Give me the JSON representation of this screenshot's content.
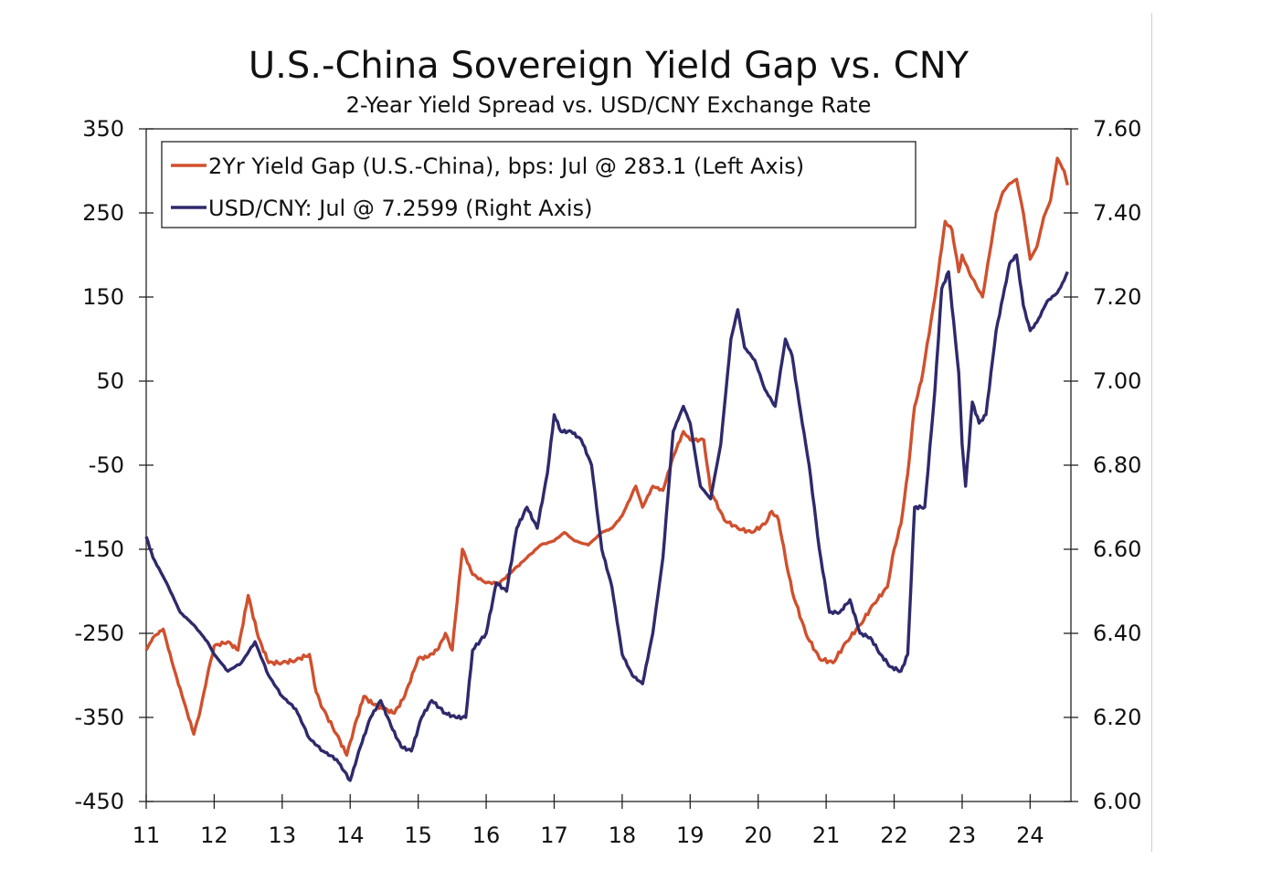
{
  "chart_data": {
    "type": "line",
    "title": "U.S.-China Sovereign Yield Gap vs. CNY",
    "subtitle": "2-Year Yield Spread vs. USD/CNY Exchange Rate",
    "xlabel": "",
    "ylabel_left": "",
    "ylabel_right": "",
    "xlim": [
      2011.0,
      2024.6
    ],
    "x_ticks": [
      2011,
      2012,
      2013,
      2014,
      2015,
      2016,
      2017,
      2018,
      2019,
      2020,
      2021,
      2022,
      2023,
      2024
    ],
    "x_tick_labels": [
      "11",
      "12",
      "13",
      "14",
      "15",
      "16",
      "17",
      "18",
      "19",
      "20",
      "21",
      "22",
      "23",
      "24"
    ],
    "ylim_left": [
      -450,
      350
    ],
    "y_ticks_left": [
      350,
      250,
      150,
      50,
      -50,
      -150,
      -250,
      -350,
      -450
    ],
    "y_tick_labels_left": [
      "350",
      "250",
      "150",
      "50",
      "-50",
      "-150",
      "-250",
      "-350",
      "-450"
    ],
    "ylim_right": [
      6.0,
      7.6
    ],
    "y_ticks_right": [
      7.6,
      7.4,
      7.2,
      7.0,
      6.8,
      6.6,
      6.4,
      6.2,
      6.0
    ],
    "y_tick_labels_right": [
      "7.60",
      "7.40",
      "7.20",
      "7.00",
      "6.80",
      "6.60",
      "6.40",
      "6.20",
      "6.00"
    ],
    "grid": false,
    "legend_position": "top-left",
    "series": [
      {
        "name": "2Yr Yield Gap (U.S.-China), bps: Jul @ 283.1 (Left Axis)",
        "axis": "left",
        "color": "#d0502e",
        "x": [
          2011.0,
          2011.1,
          2011.25,
          2011.4,
          2011.55,
          2011.7,
          2011.8,
          2011.9,
          2012.0,
          2012.2,
          2012.35,
          2012.5,
          2012.65,
          2012.8,
          2013.0,
          2013.2,
          2013.4,
          2013.5,
          2013.6,
          2013.8,
          2013.95,
          2014.05,
          2014.2,
          2014.35,
          2014.5,
          2014.65,
          2014.8,
          2015.0,
          2015.15,
          2015.3,
          2015.4,
          2015.5,
          2015.65,
          2015.8,
          2016.0,
          2016.2,
          2016.4,
          2016.6,
          2016.8,
          2017.0,
          2017.15,
          2017.3,
          2017.5,
          2017.7,
          2017.85,
          2018.0,
          2018.2,
          2018.3,
          2018.45,
          2018.6,
          2018.75,
          2018.9,
          2019.0,
          2019.2,
          2019.3,
          2019.5,
          2019.7,
          2019.9,
          2020.1,
          2020.2,
          2020.3,
          2020.4,
          2020.5,
          2020.7,
          2020.9,
          2021.1,
          2021.3,
          2021.5,
          2021.7,
          2021.9,
          2022.0,
          2022.1,
          2022.2,
          2022.3,
          2022.4,
          2022.6,
          2022.75,
          2022.85,
          2022.95,
          2023.0,
          2023.1,
          2023.2,
          2023.3,
          2023.4,
          2023.5,
          2023.6,
          2023.7,
          2023.8,
          2023.9,
          2024.0,
          2024.1,
          2024.2,
          2024.3,
          2024.4,
          2024.5,
          2024.55
        ],
        "y": [
          -270,
          -255,
          -245,
          -290,
          -330,
          -370,
          -340,
          -300,
          -265,
          -260,
          -270,
          -205,
          -255,
          -285,
          -285,
          -282,
          -275,
          -320,
          -340,
          -370,
          -395,
          -365,
          -325,
          -335,
          -340,
          -345,
          -325,
          -280,
          -278,
          -268,
          -250,
          -270,
          -150,
          -180,
          -190,
          -190,
          -175,
          -160,
          -145,
          -140,
          -130,
          -140,
          -145,
          -130,
          -125,
          -110,
          -75,
          -100,
          -75,
          -80,
          -40,
          -10,
          -20,
          -20,
          -80,
          -115,
          -125,
          -130,
          -120,
          -105,
          -115,
          -160,
          -200,
          -250,
          -280,
          -285,
          -260,
          -240,
          -215,
          -195,
          -150,
          -120,
          -60,
          20,
          50,
          150,
          240,
          230,
          180,
          200,
          180,
          165,
          150,
          200,
          250,
          275,
          285,
          290,
          250,
          195,
          210,
          245,
          265,
          315,
          300,
          283
        ]
      },
      {
        "name": "USD/CNY: Jul @ 7.2599 (Right Axis)",
        "axis": "right",
        "color": "#2e2a6b",
        "x": [
          2011.0,
          2011.1,
          2011.3,
          2011.5,
          2011.7,
          2011.9,
          2012.0,
          2012.2,
          2012.4,
          2012.6,
          2012.8,
          2013.0,
          2013.2,
          2013.4,
          2013.6,
          2013.8,
          2014.0,
          2014.15,
          2014.3,
          2014.45,
          2014.6,
          2014.75,
          2014.9,
          2015.05,
          2015.2,
          2015.4,
          2015.55,
          2015.7,
          2015.8,
          2016.0,
          2016.15,
          2016.3,
          2016.45,
          2016.6,
          2016.75,
          2016.9,
          2017.0,
          2017.1,
          2017.25,
          2017.4,
          2017.55,
          2017.7,
          2017.85,
          2018.0,
          2018.15,
          2018.3,
          2018.45,
          2018.6,
          2018.75,
          2018.9,
          2019.0,
          2019.15,
          2019.3,
          2019.45,
          2019.6,
          2019.7,
          2019.8,
          2019.95,
          2020.1,
          2020.25,
          2020.4,
          2020.5,
          2020.6,
          2020.75,
          2020.9,
          2021.05,
          2021.2,
          2021.35,
          2021.5,
          2021.65,
          2021.8,
          2021.95,
          2022.1,
          2022.2,
          2022.3,
          2022.45,
          2022.6,
          2022.7,
          2022.8,
          2022.95,
          2023.0,
          2023.05,
          2023.15,
          2023.25,
          2023.35,
          2023.5,
          2023.6,
          2023.7,
          2023.8,
          2023.9,
          2024.0,
          2024.1,
          2024.25,
          2024.4,
          2024.5,
          2024.55
        ],
        "y": [
          6.63,
          6.58,
          6.52,
          6.45,
          6.42,
          6.38,
          6.35,
          6.31,
          6.33,
          6.38,
          6.3,
          6.25,
          6.22,
          6.15,
          6.12,
          6.1,
          6.05,
          6.13,
          6.2,
          6.24,
          6.18,
          6.13,
          6.12,
          6.2,
          6.24,
          6.21,
          6.2,
          6.2,
          6.36,
          6.4,
          6.52,
          6.5,
          6.65,
          6.7,
          6.65,
          6.78,
          6.92,
          6.88,
          6.88,
          6.86,
          6.8,
          6.6,
          6.51,
          6.35,
          6.3,
          6.28,
          6.4,
          6.58,
          6.88,
          6.94,
          6.9,
          6.75,
          6.72,
          6.85,
          7.1,
          7.17,
          7.08,
          7.05,
          6.98,
          6.94,
          7.1,
          7.06,
          6.95,
          6.8,
          6.6,
          6.45,
          6.45,
          6.48,
          6.4,
          6.39,
          6.35,
          6.32,
          6.31,
          6.35,
          6.7,
          6.7,
          6.98,
          7.22,
          7.26,
          7.02,
          6.85,
          6.75,
          6.95,
          6.9,
          6.92,
          7.12,
          7.2,
          7.28,
          7.3,
          7.18,
          7.12,
          7.14,
          7.19,
          7.21,
          7.24,
          7.26
        ]
      }
    ]
  }
}
